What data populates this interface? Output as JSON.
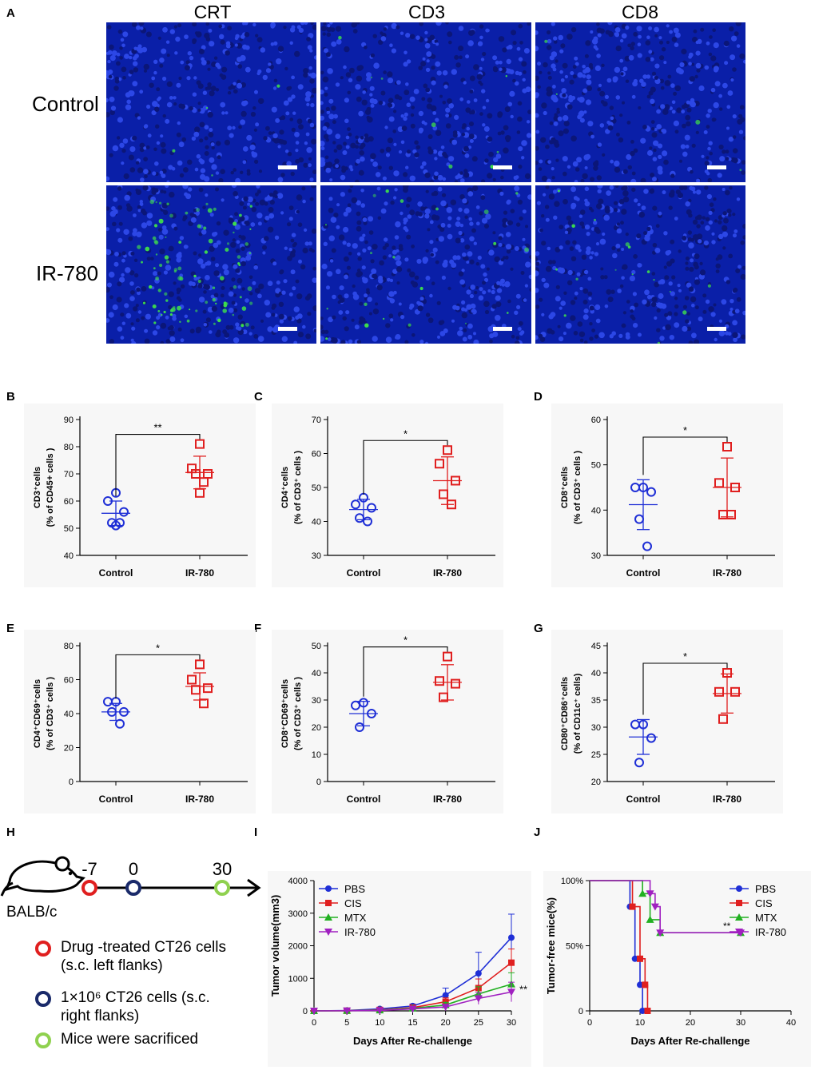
{
  "panel_a": {
    "letter": "A",
    "columns": [
      "CRT",
      "CD3",
      "CD8"
    ],
    "rows": [
      "Control",
      "IR-780"
    ],
    "bg_color": "#0a1fa8",
    "green_color": "#3fe04a"
  },
  "chart_data": [
    {
      "id": "B",
      "type": "scatter",
      "ylabel_main": "CD3⁺cells",
      "ylabel_sub": "(% of CD45+ cells )",
      "categories": [
        "Control",
        "IR-780"
      ],
      "ylim": [
        40,
        90
      ],
      "yticks": [
        40,
        50,
        60,
        70,
        80,
        90
      ],
      "series": [
        {
          "name": "Control",
          "marker": "circle",
          "color": "#1f2fd6",
          "values": [
            63,
            60,
            56,
            52,
            52,
            51
          ],
          "mean": 55.5,
          "sd": 4.5
        },
        {
          "name": "IR-780",
          "marker": "square",
          "color": "#e01f1f",
          "values": [
            81,
            72,
            70,
            70,
            67,
            63
          ],
          "mean": 70.5,
          "sd": 6
        }
      ],
      "significance": "**"
    },
    {
      "id": "C",
      "type": "scatter",
      "ylabel_main": "CD4⁺cells",
      "ylabel_sub": "(% of CD3⁺ cells )",
      "categories": [
        "Control",
        "IR-780"
      ],
      "ylim": [
        30,
        70
      ],
      "yticks": [
        30,
        40,
        50,
        60,
        70
      ],
      "series": [
        {
          "name": "Control",
          "marker": "circle",
          "color": "#1f2fd6",
          "values": [
            47,
            45,
            44,
            41,
            40
          ],
          "mean": 43.5,
          "sd": 3
        },
        {
          "name": "IR-780",
          "marker": "square",
          "color": "#e01f1f",
          "values": [
            61,
            57,
            52,
            48,
            45
          ],
          "mean": 52,
          "sd": 7
        }
      ],
      "significance": "*"
    },
    {
      "id": "D",
      "type": "scatter",
      "ylabel_main": "CD8⁺cells",
      "ylabel_sub": "(% of CD3⁺ cells )",
      "categories": [
        "Control",
        "IR-780"
      ],
      "ylim": [
        30,
        60
      ],
      "yticks": [
        30,
        40,
        50,
        60
      ],
      "series": [
        {
          "name": "Control",
          "marker": "circle",
          "color": "#1f2fd6",
          "values": [
            45,
            45,
            44,
            38,
            32
          ],
          "mean": 41.2,
          "sd": 5.5
        },
        {
          "name": "IR-780",
          "marker": "square",
          "color": "#e01f1f",
          "values": [
            54,
            46,
            45,
            39,
            39
          ],
          "mean": 45,
          "sd": 6.5
        }
      ],
      "significance": "*"
    },
    {
      "id": "E",
      "type": "scatter",
      "ylabel_main": "CD4⁺CD69⁺cells",
      "ylabel_sub": "(% of CD3⁺ cells )",
      "categories": [
        "Control",
        "IR-780"
      ],
      "ylim": [
        0,
        80
      ],
      "yticks": [
        0,
        20,
        40,
        60,
        80
      ],
      "series": [
        {
          "name": "Control",
          "marker": "circle",
          "color": "#1f2fd6",
          "values": [
            47,
            47,
            41,
            41,
            34
          ],
          "mean": 41,
          "sd": 5
        },
        {
          "name": "IR-780",
          "marker": "square",
          "color": "#e01f1f",
          "values": [
            69,
            60,
            55,
            54,
            46
          ],
          "mean": 56,
          "sd": 8
        }
      ],
      "significance": "*"
    },
    {
      "id": "F",
      "type": "scatter",
      "ylabel_main": "CD8⁺CD69⁺cells",
      "ylabel_sub": "(% of CD3⁺ cells )",
      "categories": [
        "Control",
        "IR-780"
      ],
      "ylim": [
        0,
        50
      ],
      "yticks": [
        0,
        10,
        20,
        30,
        40,
        50
      ],
      "series": [
        {
          "name": "Control",
          "marker": "circle",
          "color": "#1f2fd6",
          "values": [
            29,
            28,
            25,
            20
          ],
          "mean": 25,
          "sd": 4.5
        },
        {
          "name": "IR-780",
          "marker": "square",
          "color": "#e01f1f",
          "values": [
            46,
            37,
            36,
            31
          ],
          "mean": 36.5,
          "sd": 6.5
        }
      ],
      "significance": "*"
    },
    {
      "id": "G",
      "type": "scatter",
      "ylabel_main": "CD80⁺CD86⁺cells",
      "ylabel_sub": "(% of CD11c⁺ cells)",
      "categories": [
        "Control",
        "IR-780"
      ],
      "ylim": [
        20,
        45
      ],
      "yticks": [
        20,
        25,
        30,
        35,
        40,
        45
      ],
      "series": [
        {
          "name": "Control",
          "marker": "circle",
          "color": "#1f2fd6",
          "values": [
            30.5,
            30.5,
            28,
            23.5
          ],
          "mean": 28.2,
          "sd": 3.2
        },
        {
          "name": "IR-780",
          "marker": "square",
          "color": "#e01f1f",
          "values": [
            40,
            36.5,
            36.5,
            31.5
          ],
          "mean": 36.2,
          "sd": 3.6
        }
      ],
      "significance": "*"
    },
    {
      "id": "I",
      "type": "line",
      "xlabel": "Days After Re-challenge",
      "ylabel": "Tumor volume(mm3)",
      "x": [
        0,
        5,
        10,
        15,
        20,
        25,
        30
      ],
      "xlim": [
        0,
        30
      ],
      "ylim": [
        0,
        4000
      ],
      "xticks": [
        0,
        5,
        10,
        15,
        20,
        25,
        30
      ],
      "yticks": [
        0,
        1000,
        2000,
        3000,
        4000
      ],
      "legend_position": "top-left",
      "series": [
        {
          "name": "PBS",
          "color": "#1f2fd6",
          "marker": "circle",
          "values": [
            0,
            10,
            60,
            150,
            480,
            1150,
            2250
          ],
          "err": [
            0,
            10,
            40,
            60,
            220,
            650,
            720
          ]
        },
        {
          "name": "CIS",
          "color": "#e01f1f",
          "marker": "square",
          "values": [
            0,
            5,
            30,
            100,
            280,
            700,
            1480
          ],
          "err": [
            0,
            5,
            20,
            40,
            120,
            280,
            420
          ]
        },
        {
          "name": "MTX",
          "color": "#22b022",
          "marker": "triangle",
          "values": [
            0,
            5,
            20,
            80,
            180,
            520,
            820
          ],
          "err": [
            0,
            5,
            15,
            30,
            80,
            220,
            350
          ]
        },
        {
          "name": "IR-780",
          "color": "#a020c0",
          "marker": "triangle-down",
          "values": [
            0,
            5,
            15,
            60,
            120,
            380,
            580
          ],
          "err": [
            0,
            5,
            10,
            20,
            60,
            180,
            300
          ]
        }
      ],
      "annotation": "**"
    },
    {
      "id": "J",
      "type": "line",
      "xlabel": "Days After Re-challenge",
      "ylabel": "Tumor-free mice(%)",
      "xlim": [
        0,
        40
      ],
      "ylim": [
        0,
        100
      ],
      "xticks": [
        0,
        10,
        20,
        30,
        40
      ],
      "yticks": [
        0,
        50,
        100
      ],
      "yticklabels": [
        "0",
        "50%",
        "100%"
      ],
      "legend_position": "top-right",
      "series": [
        {
          "name": "PBS",
          "color": "#1f2fd6",
          "marker": "circle",
          "steps": [
            [
              0,
              100
            ],
            [
              8,
              80
            ],
            [
              9,
              40
            ],
            [
              10,
              20
            ],
            [
              10.5,
              0
            ]
          ]
        },
        {
          "name": "CIS",
          "color": "#e01f1f",
          "marker": "square",
          "steps": [
            [
              0,
              100
            ],
            [
              8.5,
              80
            ],
            [
              10,
              40
            ],
            [
              11,
              20
            ],
            [
              11.5,
              0
            ]
          ]
        },
        {
          "name": "MTX",
          "color": "#22b022",
          "marker": "triangle",
          "steps": [
            [
              0,
              100
            ],
            [
              10.5,
              90
            ],
            [
              12,
              70
            ],
            [
              14,
              60
            ],
            [
              30,
              60
            ]
          ]
        },
        {
          "name": "IR-780",
          "color": "#a020c0",
          "marker": "triangle-down",
          "steps": [
            [
              0,
              100
            ],
            [
              12,
              90
            ],
            [
              13,
              80
            ],
            [
              14,
              60
            ],
            [
              30,
              60
            ]
          ]
        }
      ],
      "annotation": "**"
    }
  ],
  "panel_h": {
    "letter": "H",
    "mouse_label": "BALB/c",
    "timeline_ticks": [
      "-7",
      "0",
      "30"
    ],
    "legend": [
      {
        "color": "#e01f1f",
        "line1": "Drug -treated CT26 cells",
        "line2": "(s.c. left flanks)"
      },
      {
        "color": "#1a2a6a",
        "line1": "1×10⁶ CT26 cells (s.c.",
        "line2": "right flanks)"
      },
      {
        "color": "#8fd14f",
        "line1": "Mice were sacrificed",
        "line2": ""
      }
    ]
  },
  "letters": {
    "b": "B",
    "c": "C",
    "d": "D",
    "e": "E",
    "f": "F",
    "g": "G",
    "i": "I",
    "j": "J"
  }
}
